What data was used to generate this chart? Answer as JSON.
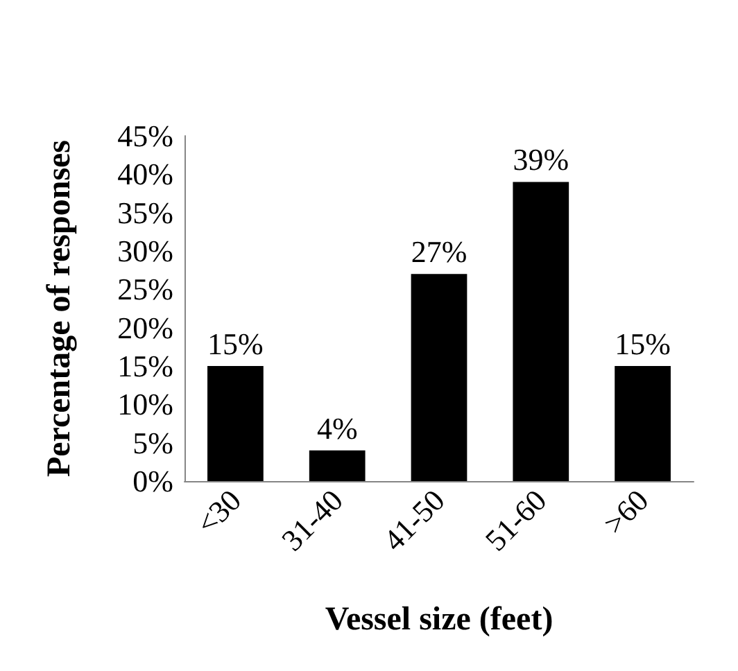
{
  "chart_data": {
    "type": "bar",
    "xlabel": "Vessel size (feet)",
    "ylabel": "Percentage of responses",
    "categories": [
      "<30",
      "31-40",
      "41-50",
      "51-60",
      ">60"
    ],
    "values": [
      15,
      4,
      27,
      39,
      15
    ],
    "value_labels": [
      "15%",
      "4%",
      "27%",
      "39%",
      "15%"
    ],
    "color": "#000000",
    "ylim": [
      0,
      45
    ],
    "yticks": [
      {
        "value": 0,
        "label": "0%"
      },
      {
        "value": 5,
        "label": "5%"
      },
      {
        "value": 10,
        "label": "10%"
      },
      {
        "value": 15,
        "label": "15%"
      },
      {
        "value": 20,
        "label": "20%"
      },
      {
        "value": 25,
        "label": "25%"
      },
      {
        "value": 30,
        "label": "30%"
      },
      {
        "value": 35,
        "label": "35%"
      },
      {
        "value": 40,
        "label": "40%"
      },
      {
        "value": 45,
        "label": "45%"
      }
    ],
    "grid": false
  }
}
